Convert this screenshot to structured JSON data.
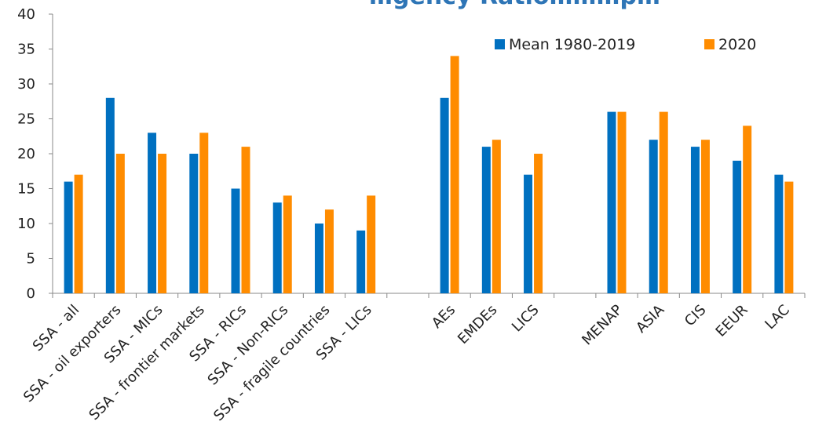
{
  "chart_data": {
    "type": "bar",
    "title": "…gency Ratio………p…",
    "xlabel": "",
    "ylabel": "",
    "ylim": [
      0,
      40
    ],
    "yticks": [
      0,
      5,
      10,
      15,
      20,
      25,
      30,
      35,
      40
    ],
    "grid": false,
    "legend_position": "top-right",
    "groups": [
      [
        "SSA - all",
        "SSA - oil exporters",
        "SSA - MICs",
        "SSA - frontier markets",
        "SSA - RICs",
        "SSA - Non-RICs",
        "SSA - fragile countries",
        "SSA - LICs"
      ],
      [
        "AEs",
        "EMDEs",
        "LICS"
      ],
      [
        "MENAP",
        "ASIA",
        "CIS",
        "EEUR",
        "LAC"
      ]
    ],
    "categories": [
      "SSA - all",
      "SSA - oil exporters",
      "SSA - MICs",
      "SSA - frontier markets",
      "SSA - RICs",
      "SSA - Non-RICs",
      "SSA - fragile countries",
      "SSA - LICs",
      "AEs",
      "EMDEs",
      "LICS",
      "MENAP",
      "ASIA",
      "CIS",
      "EEUR",
      "LAC"
    ],
    "series": [
      {
        "name": "Mean 1980-2019",
        "color": "#0070C0",
        "values": [
          16,
          28,
          23,
          20,
          15,
          13,
          10,
          9,
          28,
          21,
          17,
          26,
          22,
          21,
          19,
          17
        ]
      },
      {
        "name": "2020",
        "color": "#FF8C00",
        "values": [
          17,
          20,
          20,
          23,
          21,
          14,
          12,
          14,
          34,
          22,
          20,
          26,
          26,
          22,
          24,
          16
        ]
      }
    ]
  }
}
